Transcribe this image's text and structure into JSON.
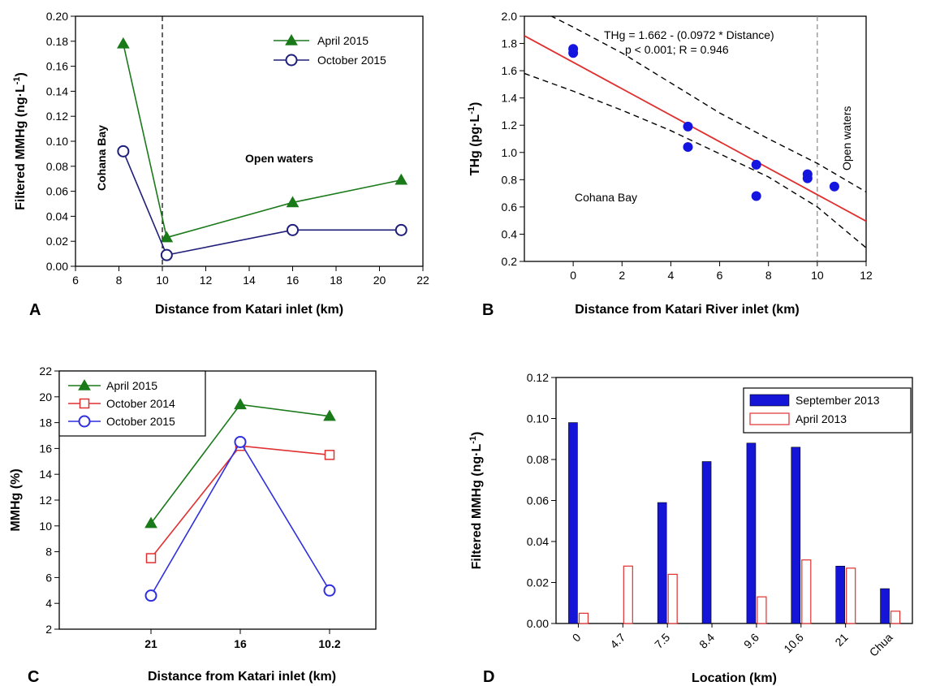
{
  "chart_data": [
    {
      "panel": "A",
      "type": "line",
      "xlabel": "Distance from Katari inlet (km)",
      "ylabel": "Filtered MMHg (ng·L-1)",
      "xlim": [
        6,
        22
      ],
      "ylim": [
        0,
        0.2
      ],
      "xticks": [
        "6",
        "8",
        "10",
        "12",
        "14",
        "16",
        "18",
        "20",
        "22"
      ],
      "yticks": [
        "0.00",
        "0.02",
        "0.04",
        "0.06",
        "0.08",
        "0.10",
        "0.12",
        "0.14",
        "0.16",
        "0.18",
        "0.20"
      ],
      "series": [
        {
          "name": "April 2015",
          "color": "#1a7a1a",
          "marker": "triangle",
          "x": [
            8.2,
            10.2,
            16,
            21
          ],
          "y": [
            0.178,
            0.023,
            0.051,
            0.069
          ]
        },
        {
          "name": "October 2015",
          "color": "#1f1f7a",
          "marker": "circle-open",
          "x": [
            8.2,
            10.2,
            16,
            21
          ],
          "y": [
            0.092,
            0.009,
            0.029,
            0.029
          ]
        }
      ],
      "vline": 10,
      "annotations": [
        "Cohana Bay",
        "Open waters"
      ],
      "legend": "top-right"
    },
    {
      "panel": "B",
      "type": "scatter",
      "xlabel": "Distance from Katari River inlet (km)",
      "ylabel": "THg (pg·L-1)",
      "xlim": [
        -2,
        12
      ],
      "ylim": [
        0.2,
        2.0
      ],
      "xticks": [
        "0",
        "2",
        "4",
        "6",
        "8",
        "10",
        "12"
      ],
      "yticks": [
        "0.2",
        "0.4",
        "0.6",
        "0.8",
        "1.0",
        "1.2",
        "1.4",
        "1.6",
        "1.8",
        "2.0"
      ],
      "points": {
        "x": [
          0,
          0,
          4.7,
          4.7,
          7.5,
          7.5,
          9.6,
          9.6,
          10.7
        ],
        "y": [
          1.73,
          1.76,
          1.19,
          1.04,
          0.91,
          0.68,
          0.84,
          0.81,
          0.75
        ]
      },
      "regression": {
        "intercept": 1.662,
        "slope": -0.0972
      },
      "ci_upper": {
        "x": [
          -2,
          0,
          2,
          4,
          6,
          8,
          10,
          12
        ],
        "y": [
          2.1,
          1.92,
          1.73,
          1.51,
          1.29,
          1.1,
          0.92,
          0.71
        ]
      },
      "ci_lower": {
        "x": [
          -2,
          0,
          2,
          4,
          6,
          8,
          10,
          12
        ],
        "y": [
          1.58,
          1.45,
          1.31,
          1.16,
          0.99,
          0.82,
          0.6,
          0.3
        ]
      },
      "vline": 10,
      "equation": "THg = 1.662 - (0.0972 * Distance)",
      "stats": "p < 0.001; R = 0.946",
      "annotations": [
        "Cohana Bay",
        "Open waters"
      ]
    },
    {
      "panel": "C",
      "type": "line",
      "xlabel": "Distance from Katari inlet (km)",
      "ylabel": "MMHg (%)",
      "categories": [
        "21",
        "16",
        "10.2"
      ],
      "ylim": [
        2,
        22
      ],
      "yticks": [
        "2",
        "4",
        "6",
        "8",
        "10",
        "12",
        "14",
        "16",
        "18",
        "20",
        "22"
      ],
      "series": [
        {
          "name": "April 2015",
          "color": "#1a7a1a",
          "marker": "triangle",
          "values": [
            10.2,
            19.4,
            18.5
          ]
        },
        {
          "name": "October 2014",
          "color": "#e03030",
          "marker": "square-open",
          "values": [
            7.5,
            16.2,
            15.5
          ]
        },
        {
          "name": "October 2015",
          "color": "#2f2fe0",
          "marker": "circle-open",
          "values": [
            4.6,
            16.5,
            5.0
          ]
        }
      ],
      "legend": "top-left"
    },
    {
      "panel": "D",
      "type": "bar",
      "xlabel": "Location (km)",
      "ylabel": "Filtered MMHg (ng·L-1)",
      "categories": [
        "0",
        "4.7",
        "7.5",
        "8.4",
        "9.6",
        "10.6",
        "21",
        "Chua"
      ],
      "ylim": [
        0,
        0.12
      ],
      "yticks": [
        "0.00",
        "0.02",
        "0.04",
        "0.06",
        "0.08",
        "0.10",
        "0.12"
      ],
      "series": [
        {
          "name": "September 2013",
          "color": "#1515d8",
          "values": [
            0.098,
            null,
            0.059,
            0.079,
            0.088,
            0.086,
            0.028,
            0.017
          ]
        },
        {
          "name": "April 2013",
          "color": "#e03030",
          "values": [
            0.005,
            0.028,
            0.024,
            null,
            0.013,
            0.031,
            0.027,
            0.006
          ]
        }
      ],
      "legend": "top-right"
    }
  ]
}
